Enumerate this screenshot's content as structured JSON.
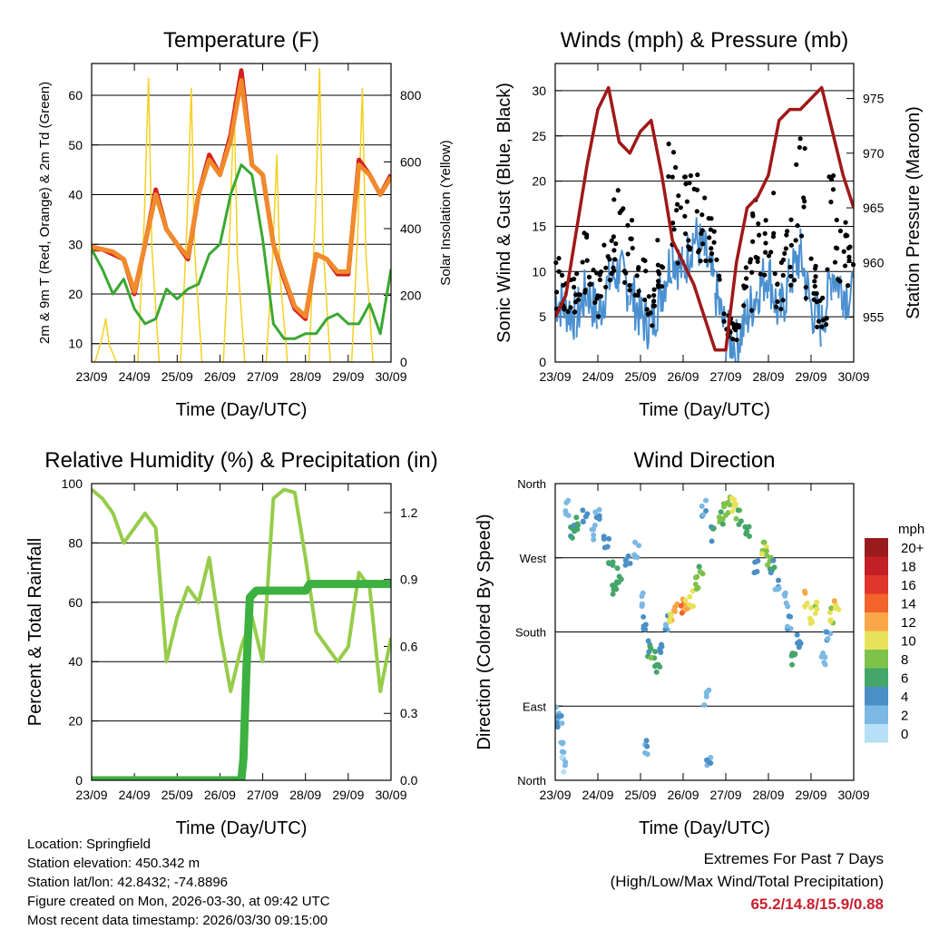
{
  "chart_data": [
    {
      "type": "line",
      "title": "Temperature (F)",
      "xlabel": "Time (Day/UTC)",
      "ylabel": "2m & 9m T (Red, Orange) & 2m Td (Green)",
      "y2label": "Solar Insolation (Yellow)",
      "ylim": [
        6.3,
        66.4
      ],
      "yticks": [
        10,
        20,
        30,
        40,
        50,
        60
      ],
      "y2lim": [
        0,
        895
      ],
      "y2ticks": [
        0,
        200,
        400,
        600,
        800
      ],
      "xticks": [
        "23/09",
        "24/09",
        "25/09",
        "26/09",
        "27/09",
        "28/09",
        "29/09",
        "30/09"
      ],
      "step_days": 0.25,
      "series": [
        {
          "name": "2m T",
          "color": "#d42020",
          "values": [
            29,
            29,
            28,
            27,
            20,
            30,
            41,
            33,
            30,
            27,
            40,
            48,
            44,
            52,
            65,
            46,
            44,
            30,
            23,
            17,
            15,
            28,
            27,
            24,
            24,
            47,
            44,
            40,
            44
          ]
        },
        {
          "name": "9m T",
          "color": "#f08a2a",
          "values": [
            29.5,
            29,
            28.5,
            27,
            20.5,
            30,
            40,
            33,
            30,
            27.5,
            40,
            47,
            44,
            51,
            63,
            46,
            44,
            30,
            23.5,
            17.5,
            15.5,
            28,
            27,
            24.5,
            24.5,
            46,
            44,
            40,
            43.5
          ]
        },
        {
          "name": "2m Td",
          "color": "#3aa832",
          "values": [
            29,
            25,
            20,
            23,
            17,
            14,
            15,
            21,
            19,
            21,
            22,
            28,
            30,
            40,
            46,
            44,
            31,
            14,
            11,
            11,
            12,
            12,
            15,
            16,
            14,
            14,
            18,
            12,
            25
          ]
        }
      ],
      "insolation": {
        "color": "#f5d020",
        "peak_offset_days": 0.33,
        "daily_peaks": [
          130,
          850,
          820,
          780,
          620,
          880,
          820
        ]
      }
    },
    {
      "type": "line+scatter",
      "title": "Winds (mph) & Pressure (mb)",
      "xlabel": "Time (Day/UTC)",
      "ylabel": "Sonic Wind & Gust (Blue, Black)",
      "y2label": "Station Pressure (Maroon)",
      "ylim": [
        0,
        33
      ],
      "yticks": [
        0,
        5,
        10,
        15,
        20,
        25,
        30
      ],
      "y2lim": [
        950.9,
        978.2
      ],
      "y2ticks": [
        955,
        960,
        965,
        970,
        975
      ],
      "xticks": [
        "23/09",
        "24/09",
        "25/09",
        "26/09",
        "27/09",
        "28/09",
        "29/09",
        "30/09"
      ],
      "step_days": 0.25,
      "series": [
        {
          "name": "Sonic Wind",
          "color": "#4a90d0",
          "values": [
            7,
            6,
            5,
            8,
            5,
            9,
            10,
            8,
            5,
            4,
            8,
            12,
            10,
            14,
            12,
            8,
            3,
            2,
            5,
            8,
            10,
            5,
            9,
            12,
            6,
            4,
            10,
            8,
            7
          ]
        },
        {
          "name": "Gust",
          "color": "#000000",
          "values": [
            10,
            10,
            9,
            14,
            9,
            15,
            18,
            14,
            10,
            7,
            14,
            22,
            18,
            20,
            18,
            14,
            5,
            4,
            10,
            16,
            17,
            10,
            15,
            22,
            10,
            7,
            18,
            14,
            14
          ]
        },
        {
          "name": "Pressure",
          "color": "#a01818",
          "values": [
            955,
            957,
            963,
            969,
            974,
            976,
            971,
            970,
            972,
            973,
            968,
            962,
            960,
            958,
            955,
            952,
            952,
            960,
            965,
            966,
            968,
            973,
            974,
            974,
            975,
            976,
            972,
            968,
            965
          ]
        }
      ]
    },
    {
      "type": "line",
      "title": "Relative Humidity (%) & Precipitation (in)",
      "xlabel": "Time (Day/UTC)",
      "ylabel": "Percent & Total Rainfall",
      "ylim": [
        0,
        100
      ],
      "yticks": [
        0,
        20,
        40,
        60,
        80,
        100
      ],
      "y2lim": [
        0,
        1.33
      ],
      "y2ticks": [
        "0.0",
        "0.3",
        "0.6",
        "0.9",
        "1.2"
      ],
      "xticks": [
        "23/09",
        "24/09",
        "25/09",
        "26/09",
        "27/09",
        "28/09",
        "29/09",
        "30/09"
      ],
      "step_days": 0.25,
      "series": [
        {
          "name": "Relative Humidity",
          "color": "#96cc4a",
          "values": [
            98,
            95,
            90,
            80,
            85,
            90,
            85,
            40,
            55,
            65,
            60,
            75,
            50,
            30,
            45,
            55,
            40,
            95,
            98,
            97,
            75,
            50,
            45,
            40,
            45,
            70,
            65,
            30,
            48
          ]
        },
        {
          "name": "Total Precipitation",
          "color": "#3cb040",
          "points": [
            [
              0,
              0
            ],
            [
              3.5,
              0
            ],
            [
              3.55,
              0.1
            ],
            [
              3.62,
              0.5
            ],
            [
              3.7,
              0.82
            ],
            [
              3.85,
              0.85
            ],
            [
              5.0,
              0.85
            ],
            [
              5.1,
              0.88
            ],
            [
              7,
              0.88
            ]
          ]
        }
      ]
    },
    {
      "type": "scatter",
      "title": "Wind Direction",
      "xlabel": "Time (Day/UTC)",
      "ylabel": "Direction (Colored By Speed)",
      "ylim": [
        0,
        360
      ],
      "yticks": [
        "North",
        "East",
        "South",
        "West",
        "North"
      ],
      "xticks": [
        "23/09",
        "24/09",
        "25/09",
        "26/09",
        "27/09",
        "28/09",
        "29/09",
        "30/09"
      ],
      "legend": {
        "title": "mph",
        "labels": [
          "20+",
          "18",
          "16",
          "14",
          "12",
          "10",
          "8",
          "6",
          "4",
          "2",
          "0"
        ],
        "colors": [
          "#9a1b1e",
          "#c21f26",
          "#e0352a",
          "#f2642a",
          "#f9a648",
          "#e8e25a",
          "#7ec24a",
          "#45a66a",
          "#4a8fc6",
          "#7bb8e4",
          "#b5e0f6"
        ]
      },
      "points": [
        [
          0.05,
          80,
          3
        ],
        [
          0.1,
          70,
          4
        ],
        [
          0.15,
          40,
          3
        ],
        [
          0.2,
          20,
          2
        ],
        [
          0.3,
          330,
          4
        ],
        [
          0.4,
          300,
          6
        ],
        [
          0.5,
          310,
          7
        ],
        [
          0.7,
          320,
          5
        ],
        [
          0.9,
          300,
          3
        ],
        [
          1.0,
          320,
          4
        ],
        [
          1.2,
          290,
          5
        ],
        [
          1.3,
          260,
          6
        ],
        [
          1.4,
          230,
          8
        ],
        [
          1.5,
          250,
          7
        ],
        [
          1.7,
          270,
          4
        ],
        [
          1.9,
          280,
          3
        ],
        [
          2.0,
          220,
          3
        ],
        [
          2.1,
          190,
          5
        ],
        [
          2.2,
          160,
          6
        ],
        [
          2.3,
          150,
          8
        ],
        [
          2.4,
          140,
          7
        ],
        [
          2.5,
          160,
          5
        ],
        [
          2.6,
          190,
          4
        ],
        [
          2.15,
          40,
          4
        ],
        [
          2.7,
          200,
          12
        ],
        [
          2.8,
          205,
          13
        ],
        [
          3.0,
          210,
          14
        ],
        [
          3.1,
          215,
          12
        ],
        [
          3.2,
          220,
          10
        ],
        [
          3.3,
          240,
          9
        ],
        [
          3.4,
          260,
          8
        ],
        [
          3.5,
          330,
          4
        ],
        [
          3.55,
          100,
          3
        ],
        [
          3.6,
          20,
          4
        ],
        [
          3.7,
          300,
          6
        ],
        [
          3.9,
          320,
          8
        ],
        [
          4.0,
          330,
          9
        ],
        [
          4.1,
          340,
          10
        ],
        [
          4.2,
          335,
          11
        ],
        [
          4.3,
          320,
          8
        ],
        [
          4.5,
          300,
          6
        ],
        [
          4.7,
          260,
          5
        ],
        [
          4.9,
          280,
          10
        ],
        [
          5.0,
          270,
          9
        ],
        [
          5.1,
          260,
          6
        ],
        [
          5.2,
          240,
          4
        ],
        [
          5.4,
          220,
          3
        ],
        [
          5.5,
          190,
          4
        ],
        [
          5.6,
          150,
          7
        ],
        [
          5.7,
          170,
          5
        ],
        [
          5.9,
          220,
          12
        ],
        [
          6.0,
          200,
          11
        ],
        [
          6.1,
          210,
          10
        ],
        [
          6.3,
          150,
          3
        ],
        [
          6.4,
          180,
          4
        ],
        [
          6.5,
          200,
          10
        ],
        [
          6.6,
          210,
          12
        ]
      ]
    }
  ],
  "footer": {
    "location": "Location: Springfield",
    "elevation": "Station elevation: 450.342 m",
    "latlon": "Station lat/lon: 42.8432; -74.8896",
    "created": "Figure created on Mon, 2026-03-30, at 09:42 UTC",
    "recent": "Most recent data timestamp: 2026/03/30 09:15:00",
    "extremes_title": "Extremes For Past 7 Days",
    "extremes_sub": "(High/Low/Max Wind/Total Precipitation)",
    "extremes_value": "65.2/14.8/15.9/0.88"
  }
}
